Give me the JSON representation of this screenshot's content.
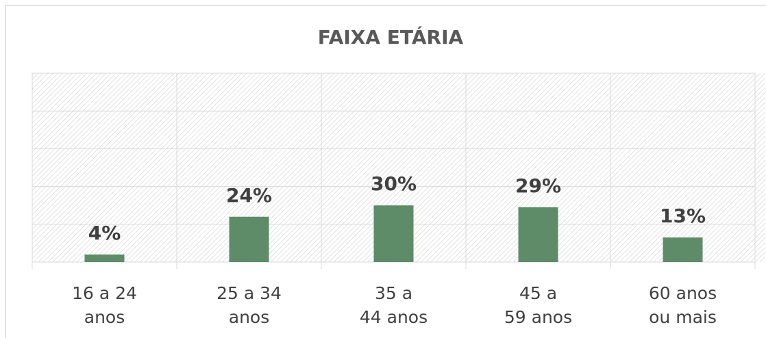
{
  "chart_data": {
    "type": "bar",
    "title": "FAIXA ETÁRIA",
    "categories": [
      [
        "16 a 24",
        "anos"
      ],
      [
        "25 a 34",
        "anos"
      ],
      [
        "35 a",
        "44 anos"
      ],
      [
        "45 a",
        "59 anos"
      ],
      [
        "60 anos",
        "ou mais"
      ]
    ],
    "values": [
      4,
      24,
      30,
      29,
      13
    ],
    "value_labels": [
      "4%",
      "24%",
      "30%",
      "29%",
      "13%"
    ],
    "color": "#5e8b68",
    "ylim": [
      0,
      100
    ],
    "yticks": [
      0,
      20,
      40,
      60,
      80,
      100
    ],
    "grid": true
  }
}
